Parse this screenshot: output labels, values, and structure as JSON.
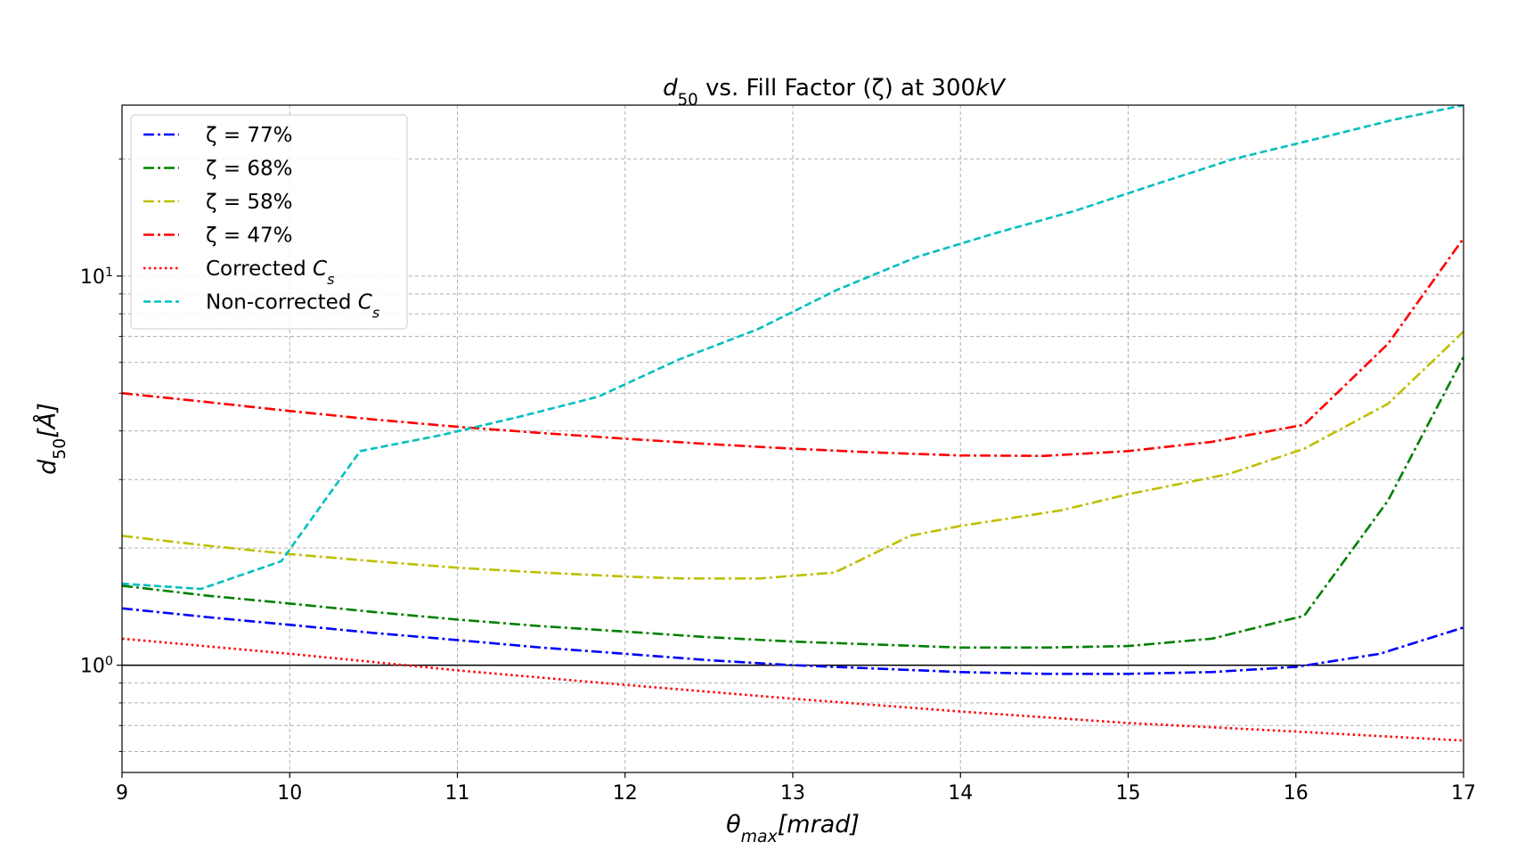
{
  "chart_data": {
    "type": "line",
    "title": {
      "parts": [
        {
          "text": "d",
          "italic": true
        },
        {
          "text": "50",
          "sub": true
        },
        {
          "text": " vs. Fill Factor (ζ) at 300"
        },
        {
          "text": "kV",
          "italic": true
        }
      ]
    },
    "xlabel": {
      "parts": [
        {
          "text": "θ",
          "italic": true
        },
        {
          "text": "max",
          "sub": true,
          "italic": true
        },
        {
          "text": "[mrad]",
          "italic": true
        }
      ]
    },
    "ylabel": {
      "parts": [
        {
          "text": "d",
          "italic": true
        },
        {
          "text": "50",
          "sub": true
        },
        {
          "text": "[Å]",
          "italic": true
        }
      ]
    },
    "xlim": [
      9,
      17
    ],
    "ylim": [
      0.53,
      27.5
    ],
    "yscale": "log",
    "xticks": [
      "9",
      "10",
      "11",
      "12",
      "13",
      "14",
      "15",
      "16",
      "17"
    ],
    "yticks": [
      {
        "value": 1,
        "base": "10",
        "exp": "0"
      },
      {
        "value": 10,
        "base": "10",
        "exp": "1"
      }
    ],
    "reference_line": {
      "y": 1.0,
      "color": "#000000"
    },
    "grid": true,
    "legend_position": "top-left",
    "series": [
      {
        "name": "ζ = 77%",
        "color": "#0000ff",
        "style": "dashdot",
        "x": [
          9,
          9.5,
          10,
          10.5,
          11,
          11.5,
          12,
          12.5,
          13,
          13.5,
          14,
          14.5,
          15,
          15.5,
          16,
          16.5,
          17
        ],
        "y": [
          1.4,
          1.33,
          1.27,
          1.21,
          1.16,
          1.11,
          1.07,
          1.03,
          1.0,
          0.98,
          0.96,
          0.95,
          0.95,
          0.96,
          0.99,
          1.07,
          1.25
        ]
      },
      {
        "name": "ζ = 68%",
        "color": "#008000",
        "style": "dashdot",
        "x": [
          9,
          9.5,
          10,
          10.5,
          11,
          11.5,
          12,
          12.5,
          13,
          13.5,
          14,
          14.5,
          15,
          15.5,
          16.05,
          16.55,
          17
        ],
        "y": [
          1.6,
          1.51,
          1.44,
          1.37,
          1.31,
          1.26,
          1.22,
          1.18,
          1.15,
          1.13,
          1.11,
          1.11,
          1.12,
          1.17,
          1.34,
          2.65,
          6.2
        ]
      },
      {
        "name": "ζ = 58%",
        "color": "#bfbf00",
        "style": "dashdot",
        "x": [
          9,
          9.5,
          10,
          10.5,
          11,
          11.5,
          12,
          12.35,
          12.8,
          13.25,
          13.7,
          14,
          14.6,
          15,
          15.6,
          16.05,
          16.55,
          17
        ],
        "y": [
          2.15,
          2.03,
          1.93,
          1.85,
          1.78,
          1.73,
          1.69,
          1.67,
          1.67,
          1.73,
          2.15,
          2.28,
          2.5,
          2.75,
          3.1,
          3.6,
          4.7,
          7.2
        ]
      },
      {
        "name": "ζ = 47%",
        "color": "#ff0000",
        "style": "dashdot",
        "x": [
          9,
          9.5,
          10,
          10.5,
          11,
          11.5,
          12,
          12.5,
          13,
          13.5,
          14,
          14.5,
          15,
          15.5,
          16.05,
          16.55,
          17
        ],
        "y": [
          5.0,
          4.75,
          4.5,
          4.28,
          4.1,
          3.95,
          3.82,
          3.7,
          3.6,
          3.52,
          3.46,
          3.45,
          3.55,
          3.75,
          4.15,
          6.7,
          12.5
        ]
      },
      {
        "name": "Corrected ",
        "sym": "C",
        "symsub": "s",
        "color": "#ff0000",
        "style": "dotted",
        "x": [
          9,
          10,
          11,
          12,
          13,
          14,
          15,
          16,
          17
        ],
        "y": [
          1.17,
          1.07,
          0.97,
          0.89,
          0.82,
          0.76,
          0.71,
          0.675,
          0.64
        ]
      },
      {
        "name": "Non-corrected ",
        "sym": "C",
        "symsub": "s",
        "color": "#00bfbf",
        "style": "dashed",
        "x": [
          9,
          9.47,
          9.95,
          10.42,
          10.9,
          11.37,
          11.84,
          12.32,
          12.79,
          13.26,
          13.74,
          14.21,
          14.68,
          15.16,
          15.63,
          16.1,
          16.58,
          17
        ],
        "y": [
          1.62,
          1.57,
          1.85,
          3.55,
          3.9,
          4.35,
          4.9,
          6.1,
          7.3,
          9.2,
          11.2,
          12.9,
          14.7,
          17.2,
          20.0,
          22.4,
          25.2,
          27.5
        ]
      }
    ]
  }
}
